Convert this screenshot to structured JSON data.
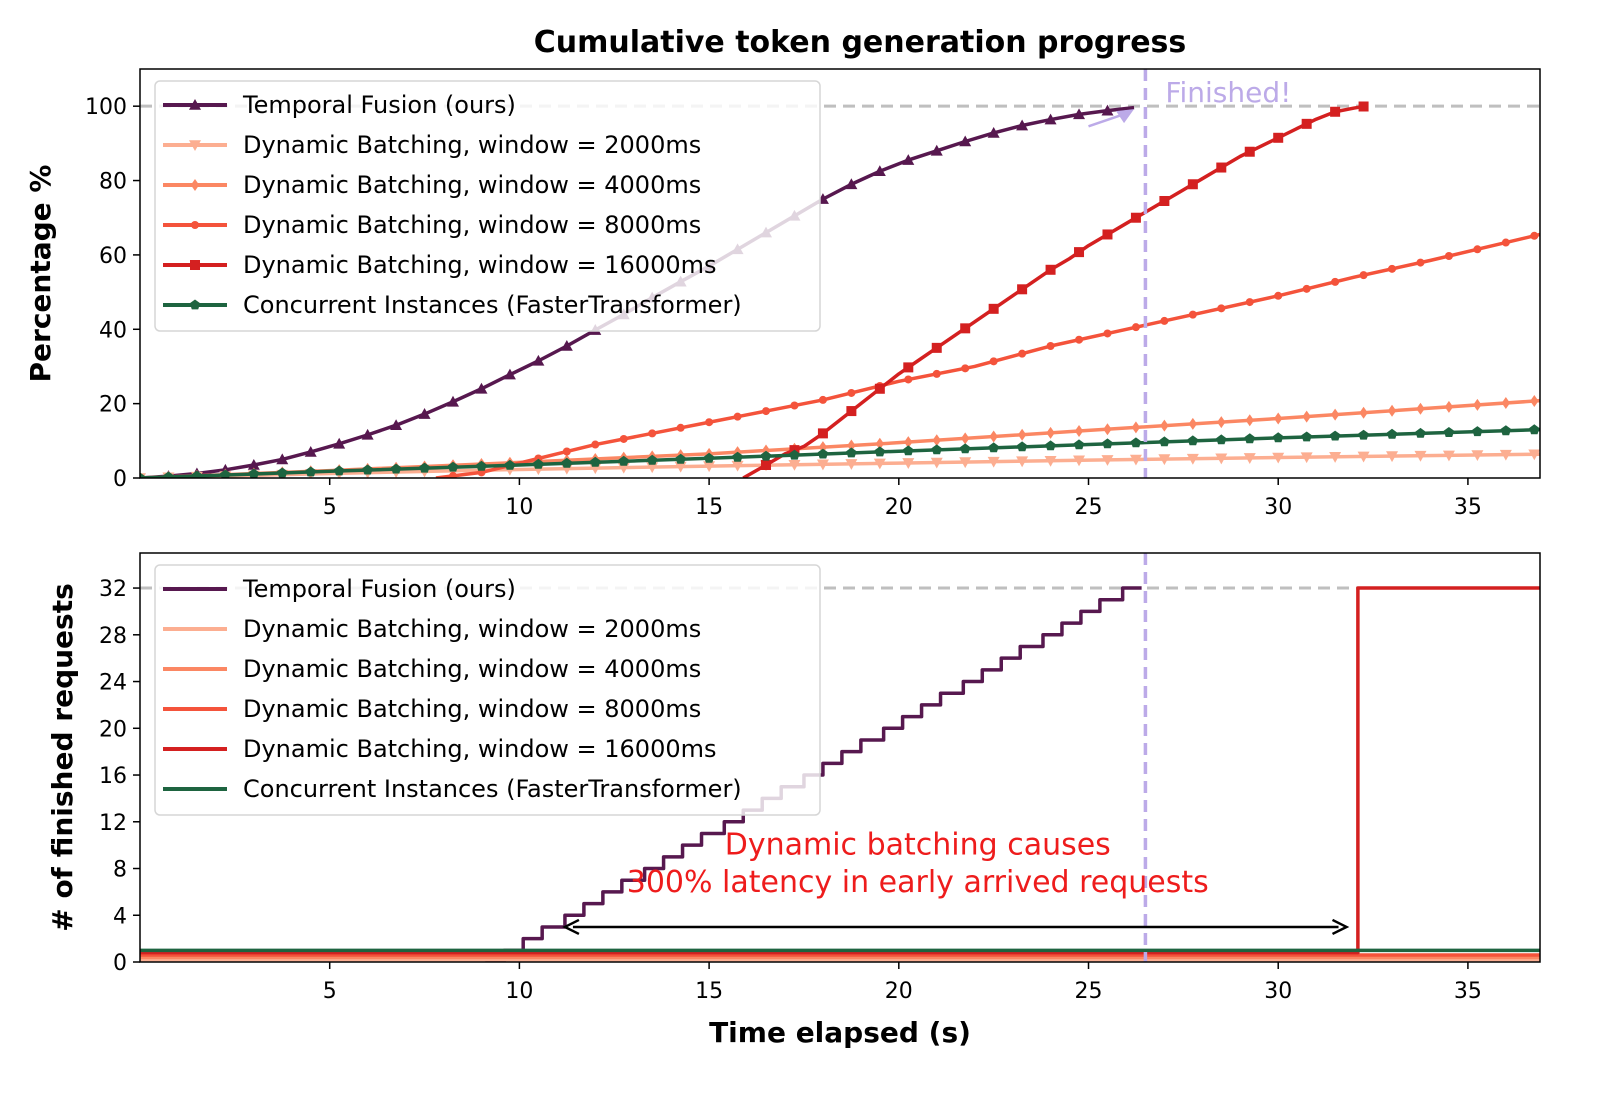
{
  "figure_title": "Cumulative token generation progress",
  "colors": {
    "temporal": "#57184f",
    "dyn2000": "#fcae91",
    "dyn4000": "#fb8763",
    "dyn8000": "#f4533b",
    "dyn16000": "#d42020",
    "concurrent": "#1e6440",
    "reference": "#bfbfbf",
    "finished": "#bcaae8",
    "annotation": "#ee1c1c"
  },
  "chart_data": [
    {
      "type": "line",
      "ylabel": "Percentage %",
      "xlabel": "",
      "xlim": [
        0,
        36.9
      ],
      "ylim": [
        0,
        110
      ],
      "xticks": [
        5,
        10,
        15,
        20,
        25,
        30,
        35
      ],
      "yticks": [
        0,
        20,
        40,
        60,
        80,
        100
      ],
      "grid": false,
      "legend_position": "top-left",
      "reference_line_y": 100,
      "finished_x": 26.5,
      "finished_label": "Finished!",
      "series": [
        {
          "name": "Temporal Fusion (ours)",
          "color_key": "temporal",
          "marker": "triangle-up",
          "x": [
            0,
            0.75,
            1.5,
            2.25,
            3,
            3.75,
            4.5,
            5.25,
            6,
            6.75,
            7.5,
            8.25,
            9,
            9.75,
            10.5,
            11.25,
            12,
            12.75,
            13.5,
            14.25,
            15,
            15.75,
            16.5,
            17.25,
            18,
            18.75,
            19.5,
            20.25,
            21,
            21.75,
            22.5,
            23.25,
            24,
            24.75,
            25.5,
            26.2
          ],
          "y": [
            0,
            0.5,
            1.2,
            2.2,
            3.5,
            5,
            7,
            9.2,
            11.6,
            14.2,
            17.2,
            20.5,
            24,
            27.8,
            31.5,
            35.5,
            39.8,
            44,
            48.5,
            52.8,
            57,
            61.5,
            66,
            70.5,
            75,
            79,
            82.5,
            85.5,
            88,
            90.5,
            92.8,
            94.8,
            96.4,
            97.8,
            98.8,
            99.6
          ]
        },
        {
          "name": "Dynamic Batching, window = 2000ms",
          "color_key": "dyn2000",
          "marker": "triangle-down",
          "x": [
            0,
            5,
            10,
            15,
            20,
            25,
            30,
            36.9
          ],
          "y": [
            0,
            1.2,
            2.3,
            3.2,
            4,
            4.8,
            5.5,
            6.4
          ]
        },
        {
          "name": "Dynamic Batching, window = 4000ms",
          "color_key": "dyn4000",
          "marker": "diamond",
          "x": [
            0,
            5,
            10,
            15,
            20,
            25,
            30,
            36.9
          ],
          "y": [
            0,
            2,
            4.2,
            6.5,
            9.5,
            12.8,
            16,
            20.8
          ]
        },
        {
          "name": "Dynamic Batching, window = 8000ms",
          "color_key": "dyn8000",
          "marker": "circle",
          "x": [
            7.8,
            9,
            10,
            11,
            12,
            13,
            14,
            15,
            16,
            18,
            20,
            22,
            24,
            26,
            28,
            30,
            32,
            34,
            36.9
          ],
          "y": [
            0,
            1.5,
            4,
            6.5,
            9,
            11,
            13,
            15,
            17,
            21,
            26,
            30,
            35.5,
            40,
            44.5,
            49,
            54,
            58.5,
            65.5
          ]
        },
        {
          "name": "Dynamic Batching, window = 16000ms",
          "color_key": "dyn16000",
          "marker": "square",
          "x": [
            15.9,
            16.5,
            17,
            17.5,
            18,
            18.5,
            19,
            19.5,
            20,
            20.5,
            21,
            21.5,
            22,
            22.5,
            23,
            23.5,
            24,
            24.5,
            25,
            25.5,
            26,
            26.5,
            27,
            27.5,
            28,
            28.5,
            29,
            29.5,
            30,
            30.5,
            31,
            31.5,
            32,
            32.3
          ],
          "y": [
            0,
            3.5,
            6.5,
            8.5,
            12,
            16,
            20,
            24,
            28,
            31.5,
            35,
            38.5,
            42,
            45.5,
            49,
            52.5,
            56,
            59,
            62.5,
            65.5,
            68.5,
            71.5,
            74.5,
            77.5,
            80.5,
            83.5,
            86.5,
            89,
            91.5,
            94,
            96.5,
            98.5,
            99.5,
            100
          ]
        },
        {
          "name": "Concurrent Instances (FasterTransformer)",
          "color_key": "concurrent",
          "marker": "pentagon",
          "x": [
            0,
            5,
            10,
            15,
            20,
            25,
            30,
            36.9
          ],
          "y": [
            0,
            1.8,
            3.5,
            5.3,
            7.2,
            9,
            10.8,
            13
          ]
        }
      ]
    },
    {
      "type": "line",
      "ylabel": "# of finished requests",
      "xlabel": "Time elapsed (s)",
      "xlim": [
        0,
        36.9
      ],
      "ylim": [
        0,
        35
      ],
      "xticks": [
        5,
        10,
        15,
        20,
        25,
        30,
        35
      ],
      "yticks": [
        0,
        4,
        8,
        12,
        16,
        20,
        24,
        28,
        32
      ],
      "grid": false,
      "legend_position": "top-left",
      "reference_line_y": 32,
      "finished_x": 26.5,
      "series": [
        {
          "name": "Temporal Fusion (ours)",
          "color_key": "temporal",
          "step": true,
          "x": [
            9.6,
            10.1,
            10.6,
            11.2,
            11.7,
            12.2,
            12.7,
            13.3,
            13.8,
            14.3,
            14.8,
            15.4,
            15.9,
            16.4,
            16.9,
            17.5,
            18,
            18.5,
            19,
            19.6,
            20.1,
            20.6,
            21.1,
            21.7,
            22.2,
            22.7,
            23.2,
            23.8,
            24.3,
            24.8,
            25.3,
            25.9,
            26.4
          ],
          "y": [
            1,
            2,
            3,
            4,
            5,
            6,
            7,
            8,
            9,
            10,
            11,
            12,
            13,
            14,
            15,
            16,
            17,
            18,
            19,
            20,
            21,
            22,
            23,
            24,
            25,
            26,
            27,
            28,
            29,
            30,
            31,
            32,
            32
          ]
        },
        {
          "name": "Dynamic Batching, window = 2000ms",
          "color_key": "dyn2000",
          "x": [
            0,
            36.9
          ],
          "y": [
            0.2,
            0.2
          ]
        },
        {
          "name": "Dynamic Batching, window = 4000ms",
          "color_key": "dyn4000",
          "x": [
            0,
            36.9
          ],
          "y": [
            0.4,
            0.4
          ]
        },
        {
          "name": "Dynamic Batching, window = 8000ms",
          "color_key": "dyn8000",
          "x": [
            0,
            36.9
          ],
          "y": [
            0.6,
            0.6
          ]
        },
        {
          "name": "Dynamic Batching, window = 16000ms",
          "color_key": "dyn16000",
          "x": [
            0,
            32.1,
            32.1,
            36.9
          ],
          "y": [
            0.8,
            0.8,
            32,
            32
          ]
        },
        {
          "name": "Concurrent Instances (FasterTransformer)",
          "color_key": "concurrent",
          "x": [
            0,
            36.9
          ],
          "y": [
            1,
            1
          ]
        }
      ],
      "annotation": {
        "lines": [
          "Dynamic batching causes",
          "300% latency in early arrived requests"
        ],
        "arrow_x": [
          11.2,
          31.8
        ],
        "arrow_y": 3,
        "text_x": 20.5,
        "text_y_top": 9.2,
        "text_y_bottom": 6.0
      }
    }
  ]
}
